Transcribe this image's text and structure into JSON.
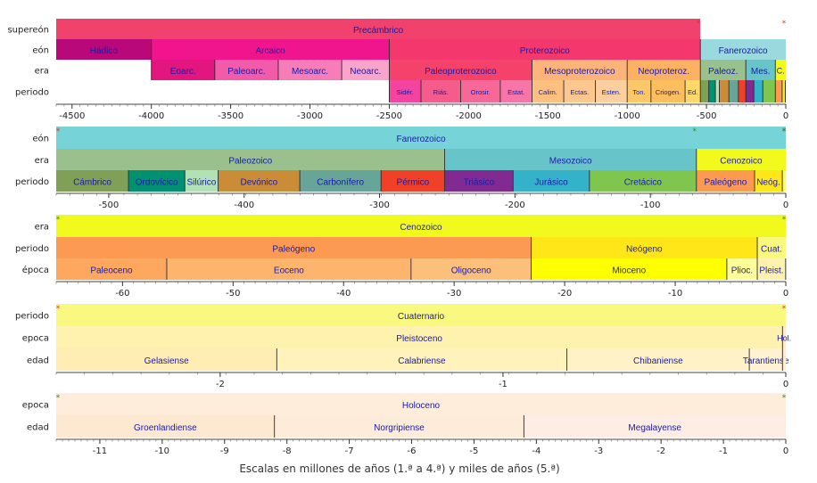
{
  "x_title": "Escalas en millones de años (1.ª a 4.ª) y miles de años (5.ª)",
  "chart_data": {
    "type": "timeline",
    "panels": [
      {
        "range": [
          -4600,
          0
        ],
        "ticks": [
          -4500,
          -4000,
          -3500,
          -3000,
          -2500,
          -2000,
          -1500,
          -1000,
          -500,
          0
        ],
        "marks": [
          {
            "x": -538.8,
            "color": "#e03030"
          },
          {
            "x": 0,
            "color": "#e03030"
          }
        ],
        "rows": [
          {
            "label": "supereón",
            "bands": [
              {
                "name": "Precámbrico",
                "start": -4600,
                "end": -538.8,
                "color": "#f0426c"
              },
              {
                "name": "",
                "start": -538.8,
                "end": 0,
                "color": "#ffffff"
              }
            ]
          },
          {
            "label": "eón",
            "bands": [
              {
                "name": "Hádico",
                "start": -4600,
                "end": -4000,
                "color": "#b8087a"
              },
              {
                "name": "Arcaico",
                "start": -4000,
                "end": -2500,
                "color": "#f1158d"
              },
              {
                "name": "Proterozoico",
                "start": -2500,
                "end": -538.8,
                "color": "#f4386e"
              },
              {
                "name": "Fanerozoico",
                "start": -538.8,
                "end": 0,
                "color": "#9ad9dd"
              }
            ]
          },
          {
            "label": "era",
            "bands": [
              {
                "name": "",
                "start": -4600,
                "end": -4000,
                "color": "#ffffff"
              },
              {
                "name": "Eoarc.",
                "start": -4000,
                "end": -3600,
                "color": "#e3157f"
              },
              {
                "name": "Paleoarc.",
                "start": -3600,
                "end": -3200,
                "color": "#f25ba9"
              },
              {
                "name": "Mesoarc.",
                "start": -3200,
                "end": -2800,
                "color": "#f67db7"
              },
              {
                "name": "Neoarc.",
                "start": -2800,
                "end": -2500,
                "color": "#f9a5cb"
              },
              {
                "name": "Paleoproterozoico",
                "start": -2500,
                "end": -1600,
                "color": "#f5426a"
              },
              {
                "name": "Mesoproterozoico",
                "start": -1600,
                "end": -1000,
                "color": "#fcb47b"
              },
              {
                "name": "Neoproteroz.",
                "start": -1000,
                "end": -538.8,
                "color": "#fdb162"
              },
              {
                "name": "Paleoz.",
                "start": -538.8,
                "end": -251.9,
                "color": "#99c08d"
              },
              {
                "name": "Mes.",
                "start": -251.9,
                "end": -66,
                "color": "#67c5ca"
              },
              {
                "name": "C.",
                "start": -66,
                "end": 0,
                "color": "#f2f91d"
              }
            ]
          },
          {
            "label": "periodo",
            "bands": [
              {
                "name": "",
                "start": -4600,
                "end": -2500,
                "color": "#ffffff"
              },
              {
                "name": "Sidér.",
                "start": -2500,
                "end": -2300,
                "color": "#f4449f"
              },
              {
                "name": "Riás.",
                "start": -2300,
                "end": -2050,
                "color": "#f55b8b"
              },
              {
                "name": "Orosir.",
                "start": -2050,
                "end": -1800,
                "color": "#f76898"
              },
              {
                "name": "Estat.",
                "start": -1800,
                "end": -1600,
                "color": "#f875a7"
              },
              {
                "name": "Calim.",
                "start": -1600,
                "end": -1400,
                "color": "#fdc07f"
              },
              {
                "name": "Ectas.",
                "start": -1400,
                "end": -1200,
                "color": "#fdc790"
              },
              {
                "name": "Esten.",
                "start": -1200,
                "end": -1000,
                "color": "#fccf9e"
              },
              {
                "name": "Ton.",
                "start": -1000,
                "end": -850,
                "color": "#fdc86a"
              },
              {
                "name": "Criogen.",
                "start": -850,
                "end": -635,
                "color": "#fdbe5e"
              },
              {
                "name": "Ed.",
                "start": -635,
                "end": -538.8,
                "color": "#fed96a"
              },
              {
                "name": "",
                "start": -538.8,
                "end": -485.4,
                "color": "#7fa056"
              },
              {
                "name": "",
                "start": -485.4,
                "end": -443.8,
                "color": "#009270"
              },
              {
                "name": "",
                "start": -443.8,
                "end": -419.2,
                "color": "#b3e1b6"
              },
              {
                "name": "",
                "start": -419.2,
                "end": -358.9,
                "color": "#cb8c37"
              },
              {
                "name": "",
                "start": -358.9,
                "end": -298.9,
                "color": "#67a599"
              },
              {
                "name": "",
                "start": -298.9,
                "end": -251.9,
                "color": "#f04028"
              },
              {
                "name": "",
                "start": -251.9,
                "end": -201.4,
                "color": "#812b92"
              },
              {
                "name": "",
                "start": -201.4,
                "end": -145,
                "color": "#34b2c9"
              },
              {
                "name": "",
                "start": -145,
                "end": -66,
                "color": "#7fc64e"
              },
              {
                "name": "",
                "start": -66,
                "end": -23.03,
                "color": "#fd9a52"
              },
              {
                "name": "",
                "start": -23.03,
                "end": -2.58,
                "color": "#ffe619"
              },
              {
                "name": "",
                "start": -2.58,
                "end": 0,
                "color": "#f9f97f"
              }
            ]
          }
        ]
      },
      {
        "range": [
          -538.8,
          0
        ],
        "ticks": [
          -500,
          -400,
          -300,
          -200,
          -100,
          0
        ],
        "marks": [
          {
            "x": -538.8,
            "color": "#e03030"
          },
          {
            "x": 0,
            "color": "#e03030"
          },
          {
            "x": -66,
            "color": "#2a8a2a"
          },
          {
            "x": 0,
            "color": "#2a8a2a"
          }
        ],
        "rows": [
          {
            "label": "eón",
            "bands": [
              {
                "name": "Fanerozoico",
                "start": -538.8,
                "end": 0,
                "color": "#76d3d8"
              }
            ]
          },
          {
            "label": "era",
            "bands": [
              {
                "name": "Paleozoico",
                "start": -538.8,
                "end": -251.9,
                "color": "#99c08d"
              },
              {
                "name": "Mesozoico",
                "start": -251.9,
                "end": -66,
                "color": "#67c5ca"
              },
              {
                "name": "Cenozoico",
                "start": -66,
                "end": 0,
                "color": "#f2f91d"
              }
            ]
          },
          {
            "label": "periodo",
            "bands": [
              {
                "name": "Cámbrico",
                "start": -538.8,
                "end": -485.4,
                "color": "#7fa056"
              },
              {
                "name": "Ordovícico",
                "start": -485.4,
                "end": -443.8,
                "color": "#009270"
              },
              {
                "name": "Silúrico",
                "start": -443.8,
                "end": -419.2,
                "color": "#b3e1b6"
              },
              {
                "name": "Devónico",
                "start": -419.2,
                "end": -358.9,
                "color": "#cb8c37"
              },
              {
                "name": "Carbonífero",
                "start": -358.9,
                "end": -298.9,
                "color": "#67a599"
              },
              {
                "name": "Pérmico",
                "start": -298.9,
                "end": -251.9,
                "color": "#f04028"
              },
              {
                "name": "Triásico",
                "start": -251.9,
                "end": -201.4,
                "color": "#812b92"
              },
              {
                "name": "Jurásico",
                "start": -201.4,
                "end": -145,
                "color": "#34b2c9"
              },
              {
                "name": "Cretácico",
                "start": -145,
                "end": -66,
                "color": "#7fc64e"
              },
              {
                "name": "Paleógeno",
                "start": -66,
                "end": -23.03,
                "color": "#fd9a52"
              },
              {
                "name": "Neóg.",
                "start": -23.03,
                "end": -2.58,
                "color": "#ffe619"
              },
              {
                "name": "",
                "start": -2.58,
                "end": 0,
                "color": "#f9f97f"
              }
            ]
          }
        ]
      },
      {
        "range": [
          -66,
          0
        ],
        "ticks": [
          -60,
          -50,
          -40,
          -30,
          -20,
          -10,
          0
        ],
        "marks": [
          {
            "x": -66,
            "color": "#2a8a2a"
          },
          {
            "x": 0,
            "color": "#2a8a2a"
          }
        ],
        "rows": [
          {
            "label": "era",
            "bands": [
              {
                "name": "Cenozoico",
                "start": -66,
                "end": 0,
                "color": "#f2f91d"
              }
            ]
          },
          {
            "label": "periodo",
            "bands": [
              {
                "name": "Paleógeno",
                "start": -66,
                "end": -23.03,
                "color": "#fd9a52"
              },
              {
                "name": "Neógeno",
                "start": -23.03,
                "end": -2.58,
                "color": "#ffe619"
              },
              {
                "name": "Cuat.",
                "start": -2.58,
                "end": 0,
                "color": "#f9f97f"
              }
            ]
          },
          {
            "label": "época",
            "bands": [
              {
                "name": "Paleoceno",
                "start": -66,
                "end": -56,
                "color": "#fda75f"
              },
              {
                "name": "Eoceno",
                "start": -56,
                "end": -33.9,
                "color": "#fdb46c"
              },
              {
                "name": "Oligoceno",
                "start": -33.9,
                "end": -23.03,
                "color": "#fdc07a"
              },
              {
                "name": "Mioceno",
                "start": -23.03,
                "end": -5.333,
                "color": "#ffff00"
              },
              {
                "name": "Plioc.",
                "start": -5.333,
                "end": -2.58,
                "color": "#ffff99"
              },
              {
                "name": "Pleist.",
                "start": -2.58,
                "end": -0.0117,
                "color": "#fff2ae"
              },
              {
                "name": "",
                "start": -0.0117,
                "end": 0,
                "color": "#feebd2"
              }
            ]
          }
        ]
      },
      {
        "range": [
          -2.58,
          0
        ],
        "ticks": [
          -2,
          -1,
          0
        ],
        "marks": [
          {
            "x": -2.58,
            "color": "#e03030"
          },
          {
            "x": 0,
            "color": "#e03030"
          }
        ],
        "rows": [
          {
            "label": "periodo",
            "bands": [
              {
                "name": "Cuaternario",
                "start": -2.58,
                "end": 0,
                "color": "#f9f97f"
              }
            ]
          },
          {
            "label": "epoca",
            "bands": [
              {
                "name": "Pleistoceno",
                "start": -2.58,
                "end": -0.0117,
                "color": "#fff2ae"
              },
              {
                "name": "Hol.",
                "start": -0.0117,
                "end": 0,
                "color": "#feebd2"
              }
            ]
          },
          {
            "label": "edad",
            "bands": [
              {
                "name": "Gelasiense",
                "start": -2.58,
                "end": -1.8,
                "color": "#ffedb3"
              },
              {
                "name": "Calabriense",
                "start": -1.8,
                "end": -0.774,
                "color": "#fff2ba"
              },
              {
                "name": "Chibaniense",
                "start": -0.774,
                "end": -0.129,
                "color": "#fff2c7"
              },
              {
                "name": "Tarantiense",
                "start": -0.129,
                "end": -0.0117,
                "color": "#fff2d3"
              },
              {
                "name": "",
                "start": -0.0117,
                "end": 0,
                "color": "#fdecda"
              }
            ]
          }
        ]
      },
      {
        "range": [
          -11.7,
          0
        ],
        "ticks": [
          -11,
          -10,
          -9,
          -8,
          -7,
          -6,
          -5,
          -4,
          -3,
          -2,
          -1,
          0
        ],
        "marks": [
          {
            "x": -11.7,
            "color": "#2a8a2a"
          },
          {
            "x": 0,
            "color": "#2a8a2a"
          }
        ],
        "rows": [
          {
            "label": "epoca",
            "bands": [
              {
                "name": "Holoceno",
                "start": -11.7,
                "end": 0,
                "color": "#feeddb"
              }
            ]
          },
          {
            "label": "edad",
            "bands": [
              {
                "name": "Groenlandiense",
                "start": -11.7,
                "end": -8.2,
                "color": "#fde9d1"
              },
              {
                "name": "Norgripiense",
                "start": -8.2,
                "end": -4.2,
                "color": "#feecda"
              },
              {
                "name": "Megalayense",
                "start": -4.2,
                "end": 0,
                "color": "#fdede4"
              }
            ]
          }
        ]
      }
    ]
  }
}
